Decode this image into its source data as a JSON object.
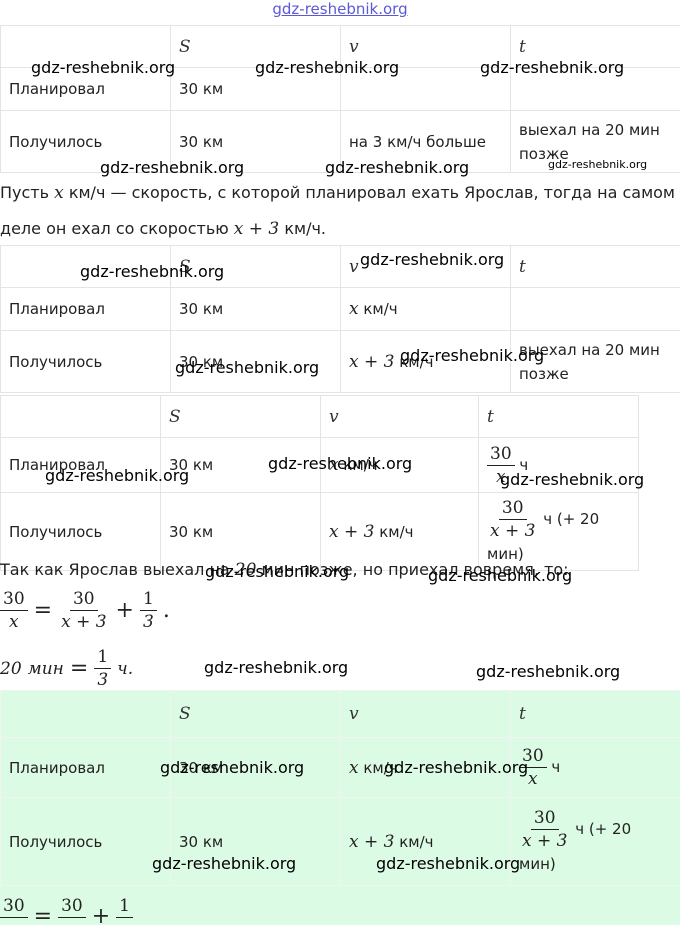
{
  "header": {
    "link": "gdz-reshebnik.org"
  },
  "tables": [
    {
      "columns": [
        null,
        "S",
        "v",
        "t"
      ],
      "rows": [
        [
          "Планировал",
          "30 км",
          null,
          null
        ],
        [
          "Получилось",
          "30 км",
          "на 3 км/ч больше",
          "выехал на 20 мин позже"
        ]
      ]
    },
    {
      "columns": [
        null,
        "S",
        "v",
        "t"
      ],
      "rows": [
        [
          "Планировал",
          "30 км",
          {
            "math": "x",
            "text": " км/ч"
          },
          null
        ],
        [
          "Получилось",
          "30 км",
          {
            "math": "x + 3",
            "text": " км/ч"
          },
          "выехал на 20 мин позже"
        ]
      ]
    },
    {
      "columns": [
        null,
        "S",
        "v",
        "t"
      ],
      "rows": [
        [
          "Планировал",
          "30 км",
          {
            "math": "x",
            "text": " км/ч"
          },
          {
            "num": "30",
            "den": "x",
            "text": " ч"
          }
        ],
        [
          "Получилось",
          "30 км",
          {
            "math": "x + 3",
            "text": " км/ч"
          },
          {
            "num": "30",
            "den": "x + 3",
            "text": " ч (+ 20 мин)"
          }
        ]
      ]
    },
    {
      "columns": [
        null,
        "S",
        "v",
        "t"
      ],
      "rows": [
        [
          "Планировал",
          "30 км",
          {
            "math": "x",
            "text": " км/ч"
          },
          {
            "num": "30",
            "den": "x",
            "text": " ч"
          }
        ],
        [
          "Получилось",
          "30 км",
          {
            "math": "x + 3",
            "text": " км/ч"
          },
          {
            "num": "30",
            "den": "x + 3",
            "text": " ч (+ 20 мин)"
          }
        ]
      ]
    }
  ],
  "paragraphs": [
    [
      "Пусть ",
      "x",
      " км/ч — скорость, с которой планировал ехать Ярослав, тогда на самом деле он ехал со скоростью ",
      "x + 3",
      " км/ч."
    ],
    [
      "Так как Ярослав выехал на ",
      "20",
      " мин позже, но приехал вовремя, то:"
    ]
  ],
  "equations": [
    [
      {
        "num": "30",
        "den": "x"
      },
      "=",
      {
        "num": "30",
        "den": "x + 3"
      },
      "+",
      {
        "num": "1",
        "den": "3"
      },
      "."
    ],
    [
      "20",
      " мин ",
      "=",
      {
        "num": "1",
        "den": "3"
      },
      " ч."
    ],
    [
      {
        "num": "30"
      },
      "=",
      {
        "num": "30"
      },
      "+",
      {
        "num": "1"
      }
    ]
  ],
  "watermarks": [
    "gdz-reshebnik.org",
    "gdz-reshebnik.org",
    "gdz-reshebnik.org",
    "gdz-reshebnik.org",
    "gdz-reshebnik.org",
    "gdz-reshebnik.org",
    "gdz-reshebnik.org",
    "gdz-reshebnik.org",
    "gdz-reshebnik.org",
    "gdz-reshebnik.org",
    "gdz-reshebnik.org",
    "gdz-reshebnik.org",
    "gdz-reshebnik.org",
    "gdz-reshebnik.org",
    "gdz-reshebnik.org",
    "gdz-reshebnik.org",
    "gdz-reshebnik.org",
    "gdz-reshebnik.org",
    "gdz-reshebnik.org",
    "gdz-reshebnik.org",
    "gdz-reshebnik.org"
  ]
}
